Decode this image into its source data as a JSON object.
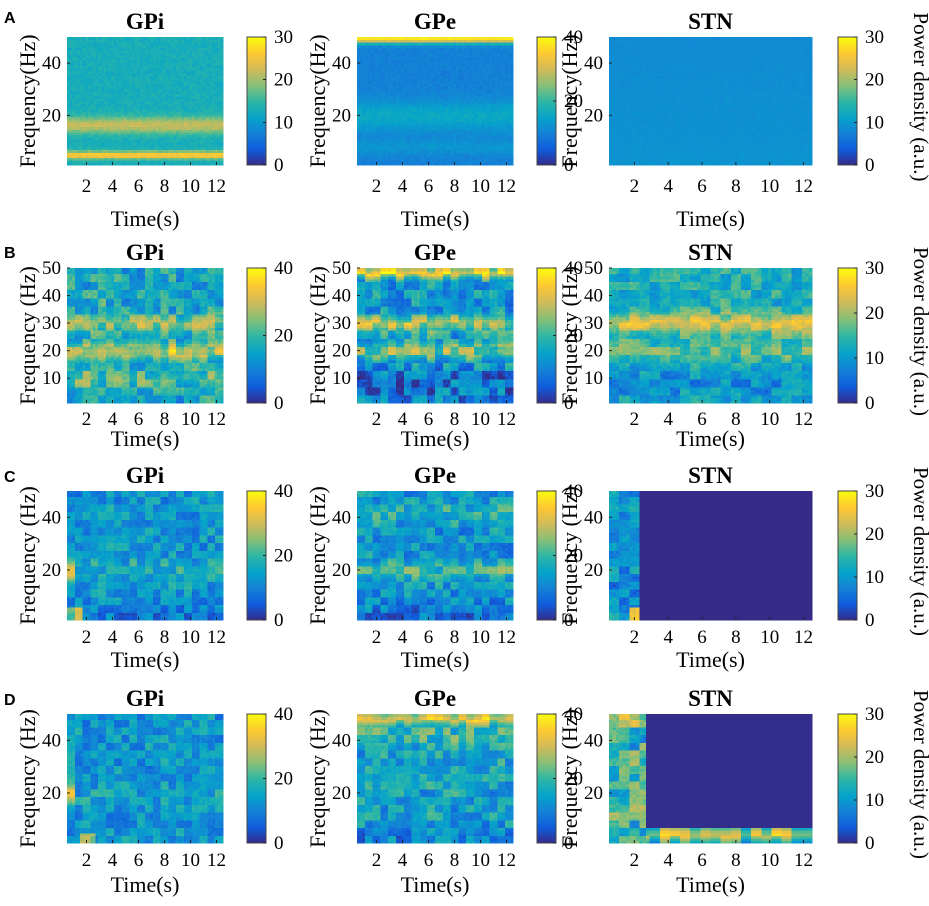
{
  "panel_letters": [
    "A",
    "B",
    "C",
    "D"
  ],
  "colorbar_label": "Power density  (a.u.)",
  "colors": {
    "parula_stops": [
      "#352a87",
      "#0f5cdd",
      "#1481d6",
      "#06a4ca",
      "#2eb7a4",
      "#87bf77",
      "#d1bb59",
      "#fec832",
      "#f9fb0e"
    ]
  },
  "chart_data": [
    {
      "type": "heatmap",
      "panel": "A",
      "title": "GPi",
      "xlabel": "Time(s)",
      "ylabel": "Frequency(Hz)",
      "xticks": [
        2,
        4,
        6,
        8,
        10,
        12
      ],
      "yticks": [
        20,
        40
      ],
      "xlim": [
        0.5,
        12.5
      ],
      "ylim": [
        1,
        50
      ],
      "clim": [
        0,
        30
      ],
      "cbar_ticks": [
        0,
        10,
        20,
        30
      ],
      "pattern": "A_gpi",
      "description_values": {
        "base": 13,
        "band_15_18Hz": 22,
        "band_5Hz": 27
      }
    },
    {
      "type": "heatmap",
      "panel": "A",
      "title": "GPe",
      "xlabel": "Time(s)",
      "ylabel": "Frequency(Hz)",
      "xticks": [
        2,
        4,
        6,
        8,
        10,
        12
      ],
      "yticks": [
        20,
        40
      ],
      "xlim": [
        0.5,
        12.5
      ],
      "ylim": [
        1,
        50
      ],
      "clim": [
        0,
        40
      ],
      "cbar_ticks": [
        0,
        20,
        40
      ],
      "pattern": "A_gpe",
      "description_values": {
        "base": 11,
        "band_20Hz": 16,
        "band_50Hz": 37
      }
    },
    {
      "type": "heatmap",
      "panel": "A",
      "title": "STN",
      "xlabel": "Time(s)",
      "ylabel": "Frequency(Hz)",
      "xticks": [
        2,
        4,
        6,
        8,
        10,
        12
      ],
      "yticks": [
        20,
        40
      ],
      "xlim": [
        0.5,
        12.5
      ],
      "ylim": [
        1,
        50
      ],
      "clim": [
        0,
        30
      ],
      "cbar_ticks": [
        0,
        10,
        20,
        30
      ],
      "pattern": "A_stn",
      "description_values": {
        "base": 9
      }
    },
    {
      "type": "heatmap",
      "panel": "B",
      "title": "GPi",
      "xlabel": "Time(s)",
      "ylabel": "Frequency (Hz)",
      "xticks": [
        2,
        4,
        6,
        8,
        10,
        12
      ],
      "yticks": [
        10,
        20,
        30,
        40,
        50
      ],
      "xlim": [
        0.5,
        12.5
      ],
      "ylim": [
        1,
        50
      ],
      "clim": [
        0,
        40
      ],
      "cbar_ticks": [
        0,
        20,
        40
      ],
      "pattern": "B_gpi",
      "description_values": {
        "base": 18,
        "band_20Hz": 33,
        "band_30Hz": 27
      }
    },
    {
      "type": "heatmap",
      "panel": "B",
      "title": "GPe",
      "xlabel": "Time(s)",
      "ylabel": "Frequency (Hz)",
      "xticks": [
        2,
        4,
        6,
        8,
        10,
        12
      ],
      "yticks": [
        10,
        20,
        30,
        40,
        50
      ],
      "xlim": [
        0.5,
        12.5
      ],
      "ylim": [
        1,
        50
      ],
      "clim": [
        0,
        40
      ],
      "cbar_ticks": [
        0,
        20,
        40
      ],
      "pattern": "B_gpe",
      "description_values": {
        "base": 17,
        "band_20Hz": 27,
        "band_30Hz": 30,
        "band_48Hz": 33
      }
    },
    {
      "type": "heatmap",
      "panel": "B",
      "title": "STN",
      "xlabel": "Time(s)",
      "ylabel": "Frequency (Hz)",
      "xticks": [
        2,
        4,
        6,
        8,
        10,
        12
      ],
      "yticks": [
        10,
        20,
        30,
        40,
        50
      ],
      "xlim": [
        0.5,
        12.5
      ],
      "ylim": [
        1,
        50
      ],
      "clim": [
        0,
        30
      ],
      "cbar_ticks": [
        0,
        10,
        20,
        30
      ],
      "pattern": "B_stn",
      "description_values": {
        "base": 14,
        "band_30Hz": 24
      }
    },
    {
      "type": "heatmap",
      "panel": "C",
      "title": "GPi",
      "xlabel": "Time(s)",
      "ylabel": "Frequency (Hz)",
      "xticks": [
        2,
        4,
        6,
        8,
        10,
        12
      ],
      "yticks": [
        20,
        40
      ],
      "xlim": [
        0.5,
        12.5
      ],
      "ylim": [
        1,
        50
      ],
      "clim": [
        0,
        40
      ],
      "cbar_ticks": [
        0,
        20,
        40
      ],
      "pattern": "C_gpi",
      "description_values": {
        "base": 13,
        "early_20Hz": 30
      }
    },
    {
      "type": "heatmap",
      "panel": "C",
      "title": "GPe",
      "xlabel": "Time(s)",
      "ylabel": "Frequency (Hz)",
      "xticks": [
        2,
        4,
        6,
        8,
        10,
        12
      ],
      "yticks": [
        20,
        40
      ],
      "xlim": [
        0.5,
        12.5
      ],
      "ylim": [
        1,
        50
      ],
      "clim": [
        0,
        40
      ],
      "cbar_ticks": [
        0,
        20,
        40
      ],
      "pattern": "C_gpe",
      "description_values": {
        "base": 14,
        "band_20Hz": 22
      }
    },
    {
      "type": "heatmap",
      "panel": "C",
      "title": "STN",
      "xlabel": "Time(s)",
      "ylabel": "Frequency (Hz)",
      "xticks": [
        2,
        4,
        6,
        8,
        10,
        12
      ],
      "yticks": [
        20,
        40
      ],
      "xlim": [
        0.5,
        12.5
      ],
      "ylim": [
        1,
        50
      ],
      "clim": [
        0,
        30
      ],
      "cbar_ticks": [
        0,
        10,
        20,
        30
      ],
      "pattern": "C_stn",
      "description_values": {
        "active_until_s": 2.2,
        "after": 0
      }
    },
    {
      "type": "heatmap",
      "panel": "D",
      "title": "GPi",
      "xlabel": "Time(s)",
      "ylabel": "Frequency (Hz)",
      "xticks": [
        2,
        4,
        6,
        8,
        10,
        12
      ],
      "yticks": [
        20,
        40
      ],
      "xlim": [
        0.5,
        12.5
      ],
      "ylim": [
        1,
        50
      ],
      "clim": [
        0,
        40
      ],
      "cbar_ticks": [
        0,
        20,
        40
      ],
      "pattern": "D_gpi",
      "description_values": {
        "base": 13,
        "early_20Hz": 30
      }
    },
    {
      "type": "heatmap",
      "panel": "D",
      "title": "GPe",
      "xlabel": "Time(s)",
      "ylabel": "Frequency (Hz)",
      "xticks": [
        2,
        4,
        6,
        8,
        10,
        12
      ],
      "yticks": [
        20,
        40
      ],
      "xlim": [
        0.5,
        12.5
      ],
      "ylim": [
        1,
        50
      ],
      "clim": [
        0,
        40
      ],
      "cbar_ticks": [
        0,
        20,
        40
      ],
      "pattern": "D_gpe",
      "description_values": {
        "base": 16,
        "band_48Hz": 32
      }
    },
    {
      "type": "heatmap",
      "panel": "D",
      "title": "STN",
      "xlabel": "Time(s)",
      "ylabel": "Frequency (Hz)",
      "xticks": [
        2,
        4,
        6,
        8,
        10,
        12
      ],
      "yticks": [
        20,
        40
      ],
      "xlim": [
        0.5,
        12.5
      ],
      "ylim": [
        1,
        50
      ],
      "clim": [
        0,
        30
      ],
      "cbar_ticks": [
        0,
        10,
        20,
        30
      ],
      "pattern": "D_stn",
      "description_values": {
        "active_until_s": 2.5,
        "low_band_5Hz": 24,
        "after": 0
      }
    }
  ]
}
